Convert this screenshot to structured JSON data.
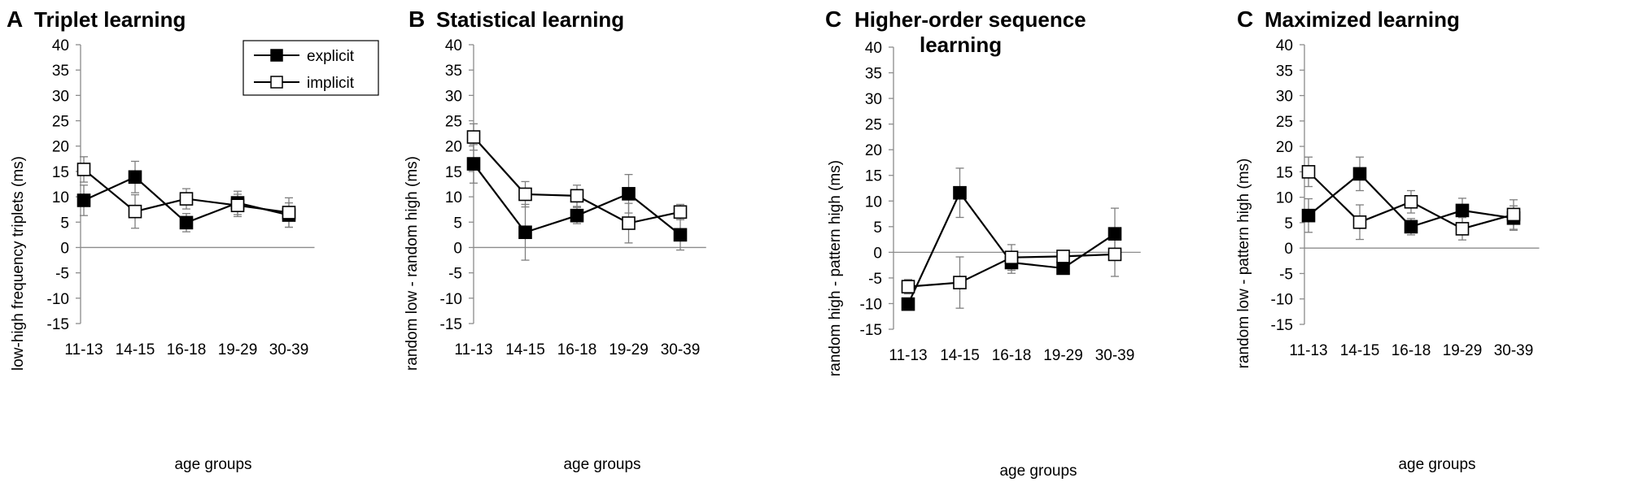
{
  "colors": {
    "explicit": "#000000",
    "implicit": "#ffffff",
    "line": "#000000",
    "errorbar": "#7f7f7f"
  },
  "legend": {
    "explicit": "explicit",
    "implicit": "implicit",
    "placement": "top-right of panel A"
  },
  "chart_data": [
    {
      "type": "line",
      "letter": "A",
      "title_lines": [
        "Triplet learning"
      ],
      "xlabel": "age groups",
      "ylabel": "low-high frequency triplets (ms)",
      "categories": [
        "11-13",
        "14-15",
        "16-18",
        "19-29",
        "30-39"
      ],
      "ylim": [
        -15,
        40
      ],
      "yticks": [
        -15,
        -10,
        -5,
        0,
        5,
        10,
        15,
        20,
        25,
        30,
        35,
        40
      ],
      "series": [
        {
          "name": "explicit",
          "values": [
            9.3,
            13.9,
            4.9,
            8.8,
            6.4
          ],
          "errors": [
            3.0,
            3.1,
            1.8,
            2.3,
            2.4
          ]
        },
        {
          "name": "implicit",
          "values": [
            15.4,
            7.1,
            9.6,
            8.3,
            6.9
          ],
          "errors": [
            2.5,
            3.3,
            2.0,
            2.2,
            2.9
          ]
        }
      ]
    },
    {
      "type": "line",
      "letter": "B",
      "title_lines": [
        "Statistical learning"
      ],
      "xlabel": "age groups",
      "ylabel": "random low - random high (ms)",
      "categories": [
        "11-13",
        "14-15",
        "16-18",
        "19-29",
        "30-39"
      ],
      "ylim": [
        -15,
        40
      ],
      "yticks": [
        -15,
        -10,
        -5,
        0,
        5,
        10,
        15,
        20,
        25,
        30,
        35,
        40
      ],
      "series": [
        {
          "name": "explicit",
          "values": [
            16.5,
            3.0,
            6.3,
            10.6,
            2.5
          ],
          "errors": [
            3.8,
            5.5,
            1.6,
            3.8,
            3.0
          ]
        },
        {
          "name": "implicit",
          "values": [
            21.8,
            10.5,
            10.2,
            4.8,
            7.0
          ],
          "errors": [
            2.6,
            2.5,
            2.1,
            3.9,
            1.5
          ]
        }
      ]
    },
    {
      "type": "line",
      "letter": "C",
      "title_lines": [
        "Higher-order sequence",
        "learning"
      ],
      "xlabel": "age groups",
      "ylabel": "random high - pattern high (ms)",
      "categories": [
        "11-13",
        "14-15",
        "16-18",
        "19-29",
        "30-39"
      ],
      "ylim": [
        -15,
        40
      ],
      "yticks": [
        -15,
        -10,
        -5,
        0,
        5,
        10,
        15,
        20,
        25,
        30,
        35,
        40
      ],
      "series": [
        {
          "name": "explicit",
          "values": [
            -10.1,
            11.6,
            -2.0,
            -3.1,
            3.6
          ],
          "errors": [
            1.0,
            4.8,
            2.1,
            1.0,
            5.0
          ]
        },
        {
          "name": "implicit",
          "values": [
            -6.7,
            -5.9,
            -1.0,
            -0.8,
            -0.4
          ],
          "errors": [
            1.4,
            5.0,
            2.5,
            1.0,
            4.3
          ]
        }
      ]
    },
    {
      "type": "line",
      "letter": "C",
      "title_lines": [
        "Maximized learning"
      ],
      "xlabel": "age groups",
      "ylabel": "random low - pattern high (ms)",
      "categories": [
        "11-13",
        "14-15",
        "16-18",
        "19-29",
        "30-39"
      ],
      "ylim": [
        -15,
        40
      ],
      "yticks": [
        -15,
        -10,
        -5,
        0,
        5,
        10,
        15,
        20,
        25,
        30,
        35,
        40
      ],
      "series": [
        {
          "name": "explicit",
          "values": [
            6.4,
            14.6,
            4.2,
            7.4,
            5.9
          ],
          "errors": [
            3.3,
            3.3,
            1.6,
            2.4,
            2.4
          ]
        },
        {
          "name": "implicit",
          "values": [
            15.0,
            5.1,
            9.1,
            3.8,
            6.6
          ],
          "errors": [
            2.9,
            3.4,
            2.2,
            2.2,
            2.9
          ]
        }
      ]
    }
  ]
}
